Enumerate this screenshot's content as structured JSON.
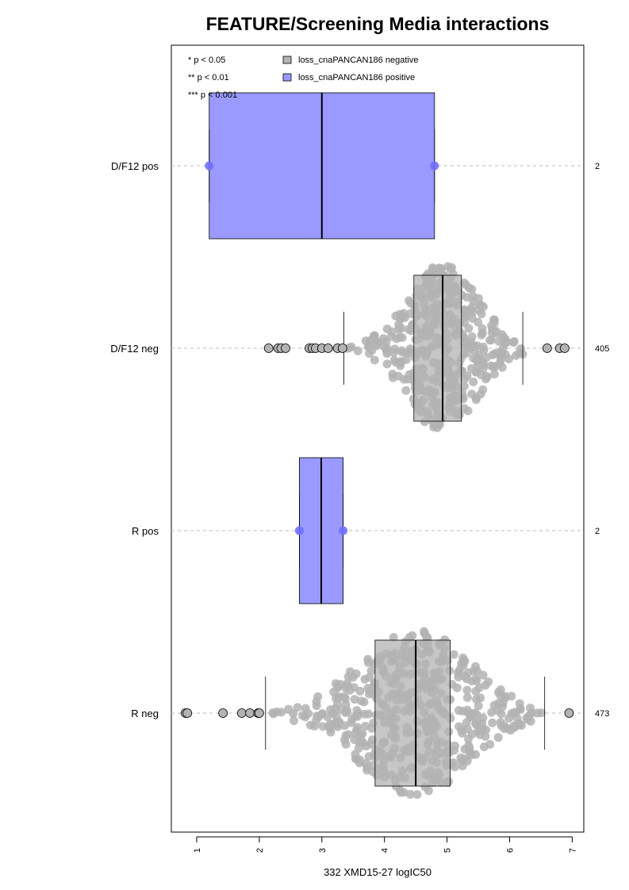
{
  "chart_data": {
    "type": "box",
    "orientation": "horizontal",
    "title": "FEATURE/Screening Media interactions",
    "xlabel": "332 XMD15-27 logIC50",
    "xlim": [
      0.6,
      7.2
    ],
    "x_ticks": [
      1,
      2,
      3,
      4,
      5,
      6,
      7
    ],
    "significance_legend": [
      "* p < 0.05",
      "** p < 0.01",
      "*** p < 0.001"
    ],
    "legend": [
      {
        "label": "loss_cnaPANCAN186 negative",
        "color": "#b3b3b3"
      },
      {
        "label": "loss_cnaPANCAN186 positive",
        "color": "#9999ff"
      }
    ],
    "groups": [
      {
        "label": "D/F12 pos",
        "n": "2",
        "status": "positive",
        "min": 1.2,
        "q1": 1.2,
        "median": 3.0,
        "q3": 4.8,
        "max": 4.8,
        "points": [
          1.2,
          4.8
        ]
      },
      {
        "label": "D/F12 neg",
        "n": "405",
        "status": "negative",
        "min": 3.35,
        "q1": 4.47,
        "median": 4.93,
        "q3": 5.23,
        "max": 6.21,
        "outliers": [
          2.15,
          2.3,
          2.35,
          2.42,
          2.8,
          2.85,
          2.9,
          3.0,
          3.1,
          3.25,
          3.33,
          6.6,
          6.8,
          6.88
        ]
      },
      {
        "label": "R pos",
        "n": "2",
        "status": "positive",
        "min": 2.64,
        "q1": 2.64,
        "median": 2.99,
        "q3": 3.34,
        "max": 3.34,
        "points": [
          2.64,
          3.34
        ]
      },
      {
        "label": "R neg",
        "n": "473",
        "status": "negative",
        "min": 2.1,
        "q1": 3.85,
        "median": 4.5,
        "q3": 5.05,
        "max": 6.56,
        "outliers": [
          0.82,
          0.85,
          1.42,
          1.72,
          1.85,
          1.98,
          2.0,
          6.95
        ]
      }
    ]
  }
}
